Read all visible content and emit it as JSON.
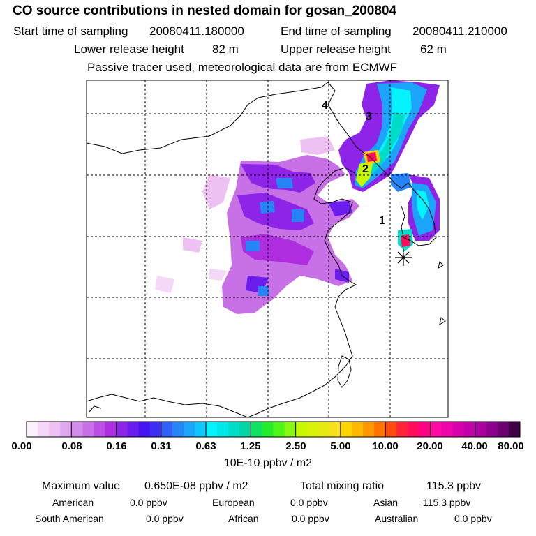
{
  "header": {
    "title": "CO  source contributions in nested domain for gosan_200804",
    "start_label": "Start time of sampling",
    "start_value": "20080411.180000",
    "end_label": "End time of sampling",
    "end_value": "20080411.210000",
    "lower_label": "Lower release height",
    "lower_value": "82 m",
    "upper_label": "Upper release height",
    "upper_value": "62 m",
    "note": "Passive tracer used, meteorological data are from ECMWF"
  },
  "chart_data": {
    "type": "heatmap",
    "title": "CO  source contributions in nested domain for gosan_200804",
    "receptor_symbol": "asterisk",
    "markers": [
      "1",
      "2",
      "3",
      "4"
    ],
    "colorbar": {
      "tick_labels": [
        "0.00",
        "0.08",
        "0.16",
        "0.31",
        "0.63",
        "1.25",
        "2.50",
        "5.00",
        "10.00",
        "20.00",
        "40.00",
        "80.00"
      ],
      "units": "10E-10 ppbv / m2",
      "colors": [
        "#fdf0fd",
        "#f5d8f7",
        "#edc2f3",
        "#e0a8ee",
        "#d38ce9",
        "#c870e6",
        "#bb4ee3",
        "#ad2ddf",
        "#8d24e7",
        "#6a1ded",
        "#4714f2",
        "#3c2ef2",
        "#3060f5",
        "#2684f7",
        "#1ba4fa",
        "#10c4fc",
        "#05f2ff",
        "#00e7e9",
        "#00dcc8",
        "#00d7a5",
        "#10e364",
        "#25ec2b",
        "#4ef51b",
        "#89f812",
        "#c9f902",
        "#d8f209",
        "#e7ea12",
        "#f6e11a",
        "#ffd400",
        "#ffb900",
        "#ff9800",
        "#ff7300",
        "#ff4a10",
        "#ff2438",
        "#ff0c5d",
        "#ff0085",
        "#ff09a5",
        "#ef04ac",
        "#d800ad",
        "#c102aa",
        "#aa009f",
        "#8c008e",
        "#6b0070",
        "#420047"
      ]
    }
  },
  "stats": {
    "max_label": "Maximum value",
    "max_value": "0.650E-08 ppbv / m2",
    "total_label": "Total mixing ratio",
    "total_value": "115.3 ppbv",
    "american_label": "American",
    "american_value": "0.0 ppbv",
    "european_label": "European",
    "european_value": "0.0 ppbv",
    "asian_label": "Asian",
    "asian_value": "115.3 ppbv",
    "south_american_label": "South American",
    "south_american_value": "0.0 ppbv",
    "african_label": "African",
    "african_value": "0.0 ppbv",
    "australian_label": "Australian",
    "australian_value": "0.0 ppbv"
  }
}
